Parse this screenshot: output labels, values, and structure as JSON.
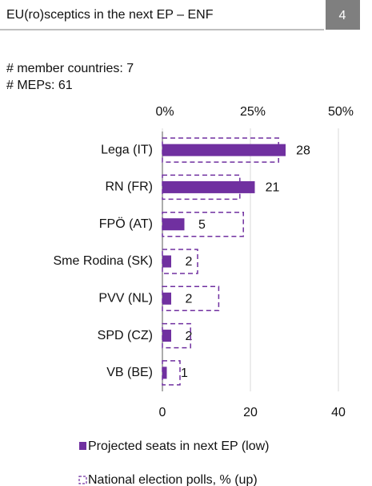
{
  "header": {
    "title": "EU(ro)sceptics in the next EP – ENF",
    "page": "4"
  },
  "notes": [
    "# member countries: 7",
    "# MEPs: 61"
  ],
  "chart_data": {
    "type": "bar",
    "orientation": "horizontal",
    "categories": [
      "Lega (IT)",
      "RN (FR)",
      "FPÖ (AT)",
      "Sme Rodina (SK)",
      "PVV (NL)",
      "SPD (CZ)",
      "VB (BE)"
    ],
    "series": [
      {
        "name": "Projected seats in next EP (low)",
        "color": "#7030a0",
        "style": "solid",
        "values": [
          28,
          21,
          5,
          2,
          2,
          2,
          1
        ]
      },
      {
        "name": "National election polls, % (up)",
        "color": "#7030a0",
        "style": "dashed",
        "axis": "x2",
        "values": [
          33,
          22,
          23,
          10,
          16,
          8,
          5
        ]
      }
    ],
    "xlim": [
      0,
      40
    ],
    "xticks": [
      0,
      20,
      40
    ],
    "x2lim": [
      0,
      50
    ],
    "x2ticks": [
      {
        "value": 0,
        "label": "0%"
      },
      {
        "value": 25,
        "label": "25%"
      },
      {
        "value": 50,
        "label": "50%"
      }
    ],
    "grid": true,
    "legend": "bottom"
  }
}
